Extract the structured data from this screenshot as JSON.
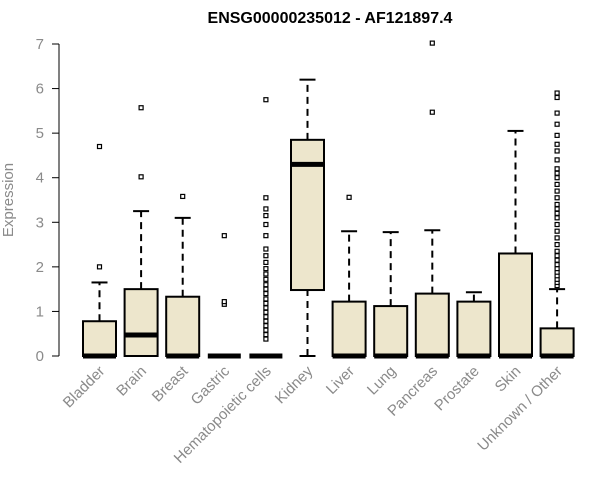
{
  "chart_data": {
    "type": "box",
    "title": "ENSG00000235012 - AF121897.4",
    "xlabel": "",
    "ylabel": "Expression",
    "ylim": [
      0,
      7
    ],
    "yticks": [
      0,
      1,
      2,
      3,
      4,
      5,
      6,
      7
    ],
    "grid": false,
    "colors": {
      "box_fill": "#ede6cc",
      "stroke": "#000000",
      "axis_text": "#8a8a8a"
    },
    "categories": [
      "Bladder",
      "Brain",
      "Breast",
      "Gastric",
      "Hematopoietic cells",
      "Kidney",
      "Liver",
      "Lung",
      "Pancreas",
      "Prostate",
      "Skin",
      "Unknown / Other"
    ],
    "boxes": [
      {
        "q1": 0,
        "median": 0,
        "q3": 0.78,
        "whisker_low": 0,
        "whisker_high": 1.65,
        "outliers": [
          2.0,
          4.7
        ]
      },
      {
        "q1": 0,
        "median": 0.47,
        "q3": 1.5,
        "whisker_low": 0,
        "whisker_high": 3.25,
        "outliers": [
          4.02,
          5.57
        ]
      },
      {
        "q1": 0,
        "median": 0,
        "q3": 1.33,
        "whisker_low": 0,
        "whisker_high": 3.1,
        "outliers": [
          3.58
        ]
      },
      {
        "q1": 0,
        "median": 0,
        "q3": 0,
        "whisker_low": 0,
        "whisker_high": 0,
        "outliers": [
          1.16,
          1.22,
          2.7
        ]
      },
      {
        "q1": 0,
        "median": 0,
        "q3": 0,
        "whisker_low": 0,
        "whisker_high": 0,
        "outliers": [
          0.38,
          0.48,
          0.58,
          0.68,
          0.78,
          0.88,
          0.98,
          1.08,
          1.18,
          1.28,
          1.4,
          1.5,
          1.6,
          1.72,
          1.84,
          1.96,
          2.1,
          2.25,
          2.4,
          2.7,
          2.95,
          3.15,
          3.3,
          3.55,
          5.75
        ]
      },
      {
        "q1": 1.48,
        "median": 4.3,
        "q3": 4.85,
        "whisker_low": 0,
        "whisker_high": 6.2,
        "outliers": []
      },
      {
        "q1": 0,
        "median": 0,
        "q3": 1.22,
        "whisker_low": 0,
        "whisker_high": 2.8,
        "outliers": [
          3.56
        ]
      },
      {
        "q1": 0,
        "median": 0,
        "q3": 1.12,
        "whisker_low": 0,
        "whisker_high": 2.78,
        "outliers": []
      },
      {
        "q1": 0,
        "median": 0,
        "q3": 1.4,
        "whisker_low": 0,
        "whisker_high": 2.82,
        "outliers": [
          5.47,
          7.02
        ]
      },
      {
        "q1": 0,
        "median": 0,
        "q3": 1.22,
        "whisker_low": 0,
        "whisker_high": 1.43,
        "outliers": []
      },
      {
        "q1": 0,
        "median": 0,
        "q3": 2.3,
        "whisker_low": 0,
        "whisker_high": 5.05,
        "outliers": []
      },
      {
        "q1": 0,
        "median": 0,
        "q3": 0.62,
        "whisker_low": 0,
        "whisker_high": 1.5,
        "outliers": [
          1.58,
          1.65,
          1.72,
          1.8,
          1.88,
          1.96,
          2.05,
          2.15,
          2.25,
          2.35,
          2.5,
          2.65,
          2.8,
          2.95,
          3.1,
          3.2,
          3.3,
          3.4,
          3.55,
          3.7,
          3.85,
          4.0,
          4.1,
          4.2,
          4.4,
          4.6,
          4.75,
          4.95,
          5.2,
          5.45,
          5.8,
          5.9
        ]
      }
    ]
  }
}
